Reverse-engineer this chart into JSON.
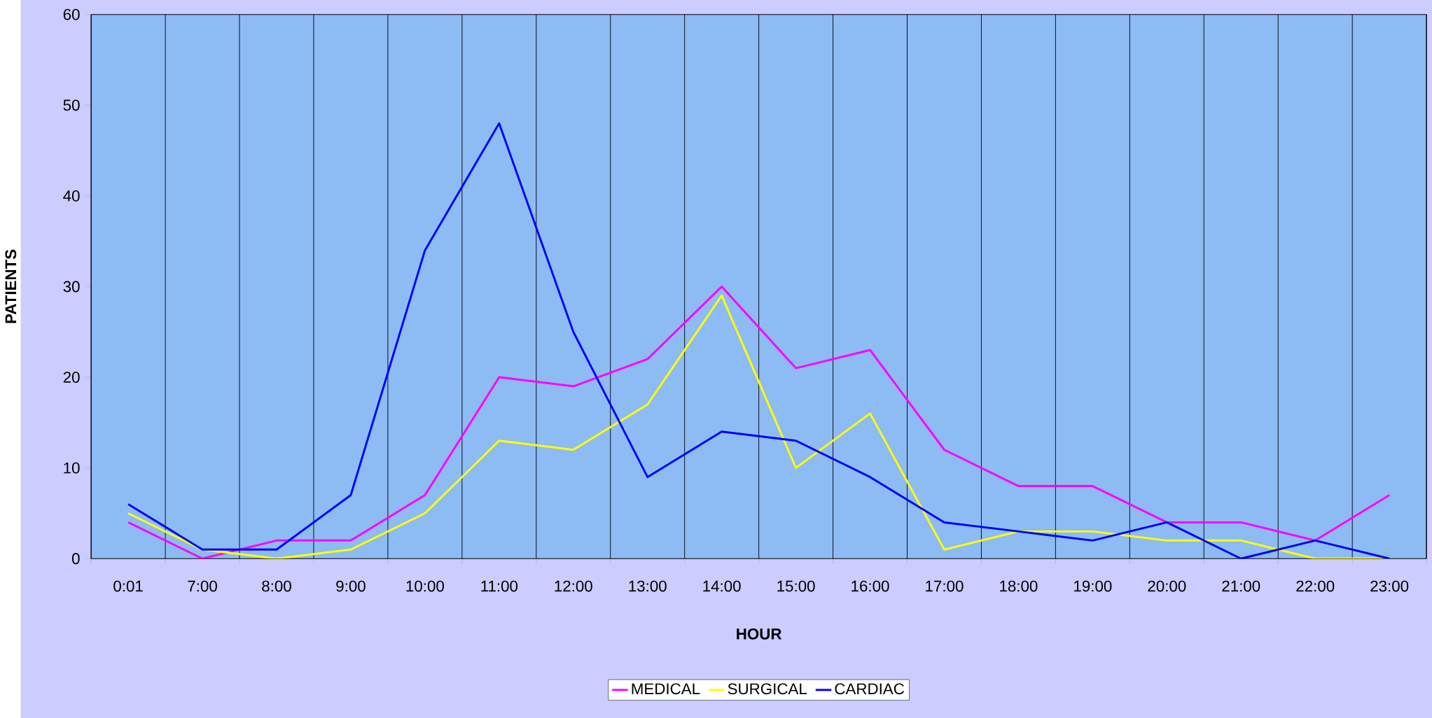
{
  "chart_data": {
    "type": "line",
    "xlabel": "HOUR",
    "ylabel": "PATIENTS",
    "categories": [
      "0:01",
      "7:00",
      "8:00",
      "9:00",
      "10:00",
      "11:00",
      "12:00",
      "13:00",
      "14:00",
      "15:00",
      "16:00",
      "17:00",
      "18:00",
      "19:00",
      "20:00",
      "21:00",
      "22:00",
      "23:00"
    ],
    "series": [
      {
        "name": "MEDICAL",
        "color": "#ff00ff",
        "values": [
          4,
          0,
          2,
          2,
          7,
          20,
          19,
          22,
          30,
          21,
          23,
          12,
          8,
          8,
          4,
          4,
          2,
          7
        ]
      },
      {
        "name": "SURGICAL",
        "color": "#ffff00",
        "values": [
          5,
          1,
          0,
          1,
          5,
          13,
          12,
          17,
          29,
          10,
          16,
          1,
          3,
          3,
          2,
          2,
          0,
          0
        ]
      },
      {
        "name": "CARDIAC",
        "color": "#0000ff",
        "values": [
          6,
          1,
          1,
          7,
          34,
          48,
          25,
          9,
          14,
          13,
          9,
          4,
          3,
          2,
          4,
          0,
          2,
          0
        ]
      }
    ],
    "ylim": [
      0,
      60
    ],
    "yticks": [
      0,
      10,
      20,
      30,
      40,
      50,
      60
    ],
    "grid": "x",
    "legend": "bottom",
    "marker": "none",
    "line_style": "solid"
  }
}
